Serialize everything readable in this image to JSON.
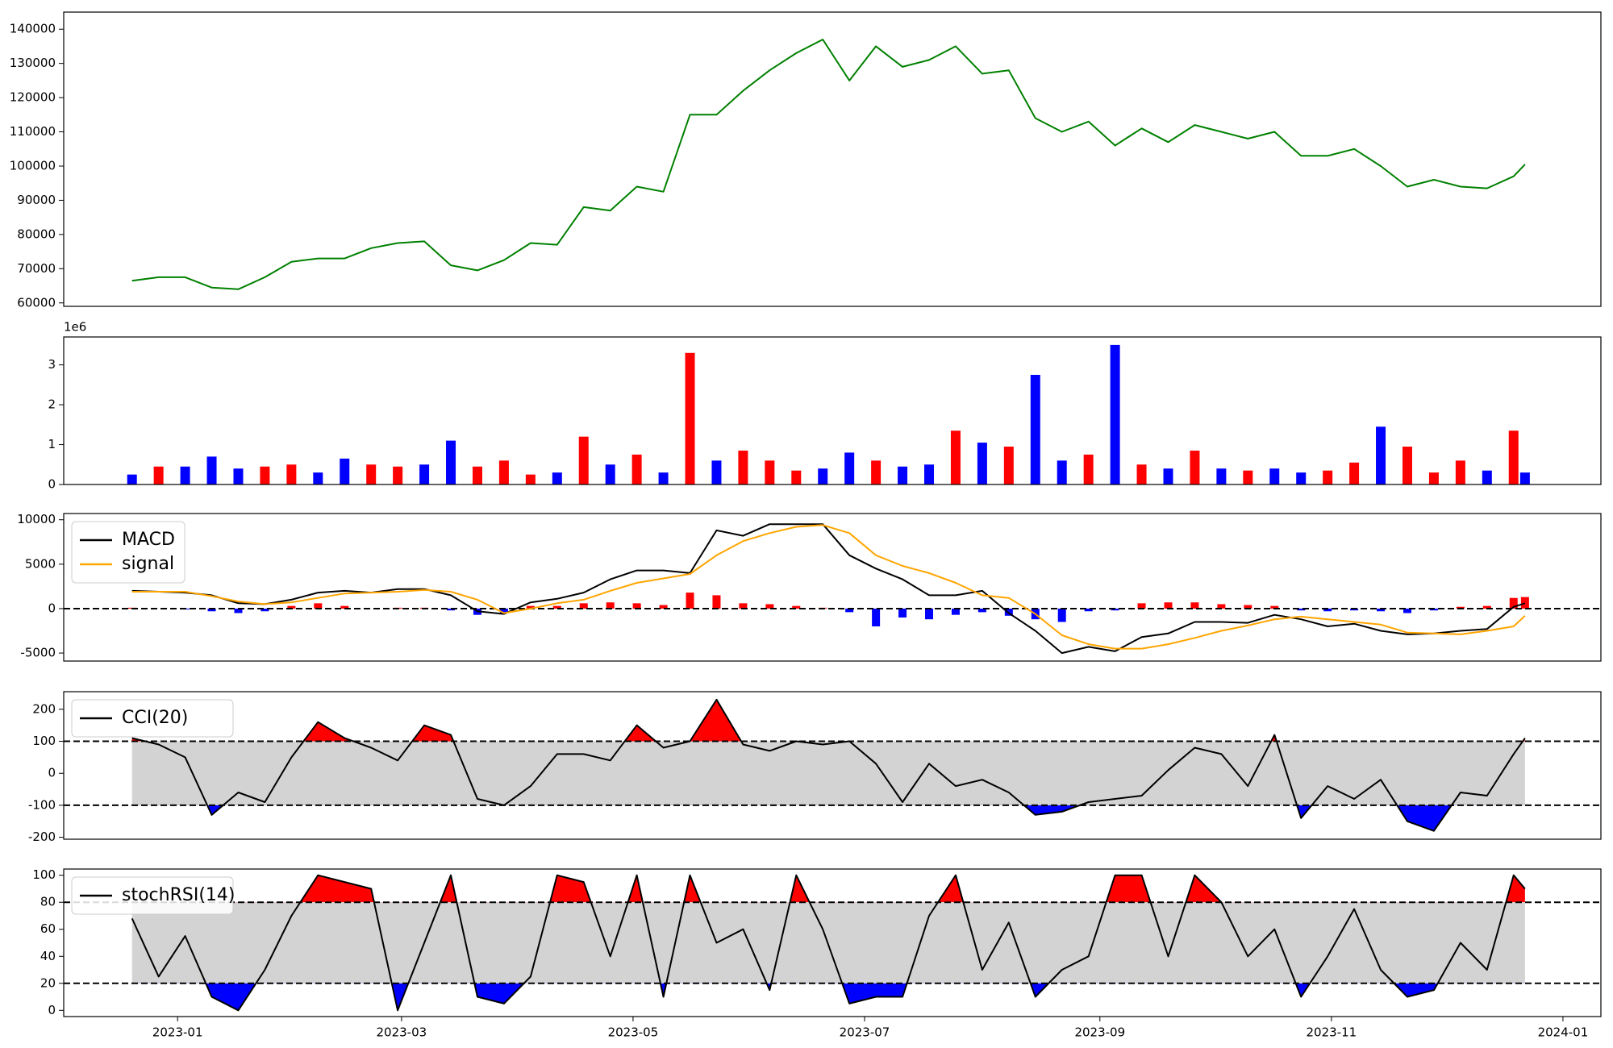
{
  "chart_data": [
    {
      "type": "line",
      "x": [
        "2022-12-20",
        "2022-12-27",
        "2023-01-03",
        "2023-01-10",
        "2023-01-17",
        "2023-01-24",
        "2023-01-31",
        "2023-02-07",
        "2023-02-14",
        "2023-02-21",
        "2023-02-28",
        "2023-03-07",
        "2023-03-14",
        "2023-03-21",
        "2023-03-28",
        "2023-04-04",
        "2023-04-11",
        "2023-04-18",
        "2023-04-25",
        "2023-05-02",
        "2023-05-09",
        "2023-05-16",
        "2023-05-23",
        "2023-05-30",
        "2023-06-06",
        "2023-06-13",
        "2023-06-20",
        "2023-06-27",
        "2023-07-04",
        "2023-07-11",
        "2023-07-18",
        "2023-07-25",
        "2023-08-01",
        "2023-08-08",
        "2023-08-15",
        "2023-08-22",
        "2023-08-29",
        "2023-09-05",
        "2023-09-12",
        "2023-09-19",
        "2023-09-26",
        "2023-10-03",
        "2023-10-10",
        "2023-10-17",
        "2023-10-24",
        "2023-10-31",
        "2023-11-07",
        "2023-11-14",
        "2023-11-21",
        "2023-11-28",
        "2023-12-05",
        "2023-12-12",
        "2023-12-19",
        "2023-12-22"
      ],
      "values": [
        66500,
        67500,
        67500,
        64500,
        64000,
        67500,
        72000,
        73000,
        73000,
        76000,
        77500,
        78000,
        71000,
        69500,
        72500,
        77500,
        77000,
        88000,
        87000,
        94000,
        92500,
        115000,
        115000,
        122000,
        128000,
        133000,
        137000,
        125000,
        135000,
        129000,
        131000,
        135000,
        127000,
        128000,
        114000,
        110000,
        113000,
        106000,
        111000,
        107000,
        112000,
        110000,
        108000,
        110000,
        103000,
        103000,
        105000,
        100000,
        94000,
        96000,
        94000,
        93500,
        97000,
        100500
      ],
      "color": "#008000",
      "xlim": [
        "2022-12-02",
        "2024-01-11"
      ],
      "ylim": [
        59000,
        145000
      ],
      "yticks": [
        60000,
        70000,
        80000,
        90000,
        100000,
        110000,
        120000,
        130000,
        140000
      ]
    },
    {
      "type": "bar",
      "x": [
        "2022-12-20",
        "2022-12-27",
        "2023-01-03",
        "2023-01-10",
        "2023-01-17",
        "2023-01-24",
        "2023-01-31",
        "2023-02-07",
        "2023-02-14",
        "2023-02-21",
        "2023-02-28",
        "2023-03-07",
        "2023-03-14",
        "2023-03-21",
        "2023-03-28",
        "2023-04-04",
        "2023-04-11",
        "2023-04-18",
        "2023-04-25",
        "2023-05-02",
        "2023-05-09",
        "2023-05-16",
        "2023-05-23",
        "2023-05-30",
        "2023-06-06",
        "2023-06-13",
        "2023-06-20",
        "2023-06-27",
        "2023-07-04",
        "2023-07-11",
        "2023-07-18",
        "2023-07-25",
        "2023-08-01",
        "2023-08-08",
        "2023-08-15",
        "2023-08-22",
        "2023-08-29",
        "2023-09-05",
        "2023-09-12",
        "2023-09-19",
        "2023-09-26",
        "2023-10-03",
        "2023-10-10",
        "2023-10-17",
        "2023-10-24",
        "2023-10-31",
        "2023-11-07",
        "2023-11-14",
        "2023-11-21",
        "2023-11-28",
        "2023-12-05",
        "2023-12-12",
        "2023-12-19",
        "2023-12-22"
      ],
      "values": [
        250000,
        450000,
        450000,
        700000,
        400000,
        450000,
        500000,
        300000,
        650000,
        500000,
        450000,
        500000,
        1100000,
        450000,
        600000,
        250000,
        300000,
        1200000,
        500000,
        750000,
        300000,
        3300000,
        600000,
        850000,
        600000,
        350000,
        400000,
        800000,
        600000,
        450000,
        500000,
        1350000,
        1050000,
        950000,
        2750000,
        600000,
        750000,
        3500000,
        500000,
        400000,
        850000,
        400000,
        350000,
        400000,
        300000,
        350000,
        550000,
        1450000,
        950000,
        300000,
        600000,
        350000,
        1350000,
        300000
      ],
      "colors": [
        "blue",
        "red",
        "blue",
        "blue",
        "blue",
        "red",
        "red",
        "blue",
        "blue",
        "red",
        "red",
        "blue",
        "blue",
        "red",
        "red",
        "red",
        "blue",
        "red",
        "blue",
        "red",
        "blue",
        "red",
        "blue",
        "red",
        "red",
        "red",
        "blue",
        "blue",
        "red",
        "blue",
        "blue",
        "red",
        "blue",
        "red",
        "blue",
        "blue",
        "red",
        "blue",
        "red",
        "blue",
        "red",
        "blue",
        "red",
        "blue",
        "blue",
        "red",
        "red",
        "blue",
        "red",
        "red",
        "red",
        "blue",
        "red",
        "blue"
      ],
      "offset_label": "1e6",
      "xlim": [
        "2022-12-02",
        "2024-01-11"
      ],
      "ylim": [
        0,
        3700000
      ],
      "yticks": [
        0,
        {
          "value": 1000000,
          "label": "1"
        },
        {
          "value": 2000000,
          "label": "2"
        },
        {
          "value": 3000000,
          "label": "3"
        }
      ]
    },
    {
      "type": "line",
      "x": [
        "2022-12-20",
        "2022-12-27",
        "2023-01-03",
        "2023-01-10",
        "2023-01-17",
        "2023-01-24",
        "2023-01-31",
        "2023-02-07",
        "2023-02-14",
        "2023-02-21",
        "2023-02-28",
        "2023-03-07",
        "2023-03-14",
        "2023-03-21",
        "2023-03-28",
        "2023-04-04",
        "2023-04-11",
        "2023-04-18",
        "2023-04-25",
        "2023-05-02",
        "2023-05-09",
        "2023-05-16",
        "2023-05-23",
        "2023-05-30",
        "2023-06-06",
        "2023-06-13",
        "2023-06-20",
        "2023-06-27",
        "2023-07-04",
        "2023-07-11",
        "2023-07-18",
        "2023-07-25",
        "2023-08-01",
        "2023-08-08",
        "2023-08-15",
        "2023-08-22",
        "2023-08-29",
        "2023-09-05",
        "2023-09-12",
        "2023-09-19",
        "2023-09-26",
        "2023-10-03",
        "2023-10-10",
        "2023-10-17",
        "2023-10-24",
        "2023-10-31",
        "2023-11-07",
        "2023-11-14",
        "2023-11-21",
        "2023-11-28",
        "2023-12-05",
        "2023-12-12",
        "2023-12-19",
        "2023-12-22"
      ],
      "series": [
        {
          "name": "MACD",
          "color": "black",
          "values": [
            2000,
            1900,
            1800,
            1500,
            600,
            500,
            1000,
            1800,
            2000,
            1800,
            2200,
            2200,
            1500,
            -300,
            -600,
            700,
            1100,
            1800,
            3300,
            4300,
            4300,
            4000,
            8800,
            8200,
            9500,
            9500,
            9500,
            6000,
            4500,
            3300,
            1500,
            1500,
            2000,
            -500,
            -2500,
            -5000,
            -4300,
            -4800,
            -3200,
            -2800,
            -1500,
            -1500,
            -1600,
            -700,
            -1200,
            -2000,
            -1700,
            -2500,
            -2900,
            -2800,
            -2500,
            -2300,
            200,
            600
          ]
        },
        {
          "name": "signal",
          "color": "orange",
          "values": [
            1900,
            1900,
            1900,
            1400,
            800,
            500,
            700,
            1200,
            1700,
            1800,
            1900,
            2100,
            1900,
            1000,
            -500,
            0,
            600,
            1000,
            2000,
            2900,
            3400,
            3900,
            6000,
            7600,
            8500,
            9200,
            9400,
            8500,
            6000,
            4800,
            4000,
            2900,
            1500,
            1200,
            -600,
            -3000,
            -4000,
            -4500,
            -4500,
            -4000,
            -3300,
            -2500,
            -1900,
            -1200,
            -900,
            -1200,
            -1500,
            -1800,
            -2700,
            -2800,
            -2900,
            -2500,
            -2000,
            -800
          ]
        }
      ],
      "histogram": {
        "values": [
          100,
          0,
          -100,
          -300,
          -500,
          -300,
          300,
          600,
          300,
          0,
          100,
          100,
          -200,
          -700,
          -500,
          300,
          300,
          600,
          700,
          600,
          400,
          1800,
          1500,
          600,
          500,
          300,
          100,
          -400,
          -2000,
          -1000,
          -1200,
          -700,
          -400,
          -800,
          -1200,
          -1500,
          -300,
          -200,
          600,
          700,
          700,
          500,
          400,
          300,
          -200,
          -300,
          -200,
          -300,
          -500,
          -200,
          200,
          300,
          1200,
          1300
        ],
        "positive_color": "red",
        "negative_color": "blue"
      },
      "zero_line": true,
      "legend": "upper left",
      "xlim": [
        "2022-12-02",
        "2024-01-11"
      ],
      "ylim": [
        -5900,
        10700
      ],
      "yticks": [
        -5000,
        0,
        5000,
        10000
      ]
    },
    {
      "type": "line",
      "x": [
        "2022-12-20",
        "2022-12-27",
        "2023-01-03",
        "2023-01-10",
        "2023-01-17",
        "2023-01-24",
        "2023-01-31",
        "2023-02-07",
        "2023-02-14",
        "2023-02-21",
        "2023-02-28",
        "2023-03-07",
        "2023-03-14",
        "2023-03-21",
        "2023-03-28",
        "2023-04-04",
        "2023-04-11",
        "2023-04-18",
        "2023-04-25",
        "2023-05-02",
        "2023-05-09",
        "2023-05-16",
        "2023-05-23",
        "2023-05-30",
        "2023-06-06",
        "2023-06-13",
        "2023-06-20",
        "2023-06-27",
        "2023-07-04",
        "2023-07-11",
        "2023-07-18",
        "2023-07-25",
        "2023-08-01",
        "2023-08-08",
        "2023-08-15",
        "2023-08-22",
        "2023-08-29",
        "2023-09-05",
        "2023-09-12",
        "2023-09-19",
        "2023-09-26",
        "2023-10-03",
        "2023-10-10",
        "2023-10-17",
        "2023-10-24",
        "2023-10-31",
        "2023-11-07",
        "2023-11-14",
        "2023-11-21",
        "2023-11-28",
        "2023-12-05",
        "2023-12-12",
        "2023-12-19",
        "2023-12-22"
      ],
      "series": [
        {
          "name": "CCI(20)",
          "color": "black",
          "values": [
            110,
            90,
            50,
            -130,
            -60,
            -90,
            50,
            160,
            110,
            80,
            40,
            150,
            120,
            -80,
            -100,
            -40,
            60,
            60,
            40,
            150,
            80,
            100,
            230,
            90,
            70,
            100,
            90,
            100,
            30,
            -90,
            30,
            -40,
            -20,
            -60,
            -130,
            -120,
            -90,
            -80,
            -70,
            10,
            80,
            60,
            -40,
            120,
            -140,
            -40,
            -80,
            -20,
            -150,
            -180,
            -60,
            -70,
            60,
            110
          ]
        }
      ],
      "bands": [
        -100,
        100
      ],
      "band_fill": "lightgray",
      "above_color": "red",
      "below_color": "blue",
      "legend": "upper left",
      "xlim": [
        "2022-12-02",
        "2024-01-11"
      ],
      "ylim": [
        -206,
        255
      ],
      "yticks": [
        -200,
        -100,
        0,
        100,
        200
      ]
    },
    {
      "type": "line",
      "x": [
        "2022-12-20",
        "2022-12-27",
        "2023-01-03",
        "2023-01-10",
        "2023-01-17",
        "2023-01-24",
        "2023-01-31",
        "2023-02-07",
        "2023-02-14",
        "2023-02-21",
        "2023-02-28",
        "2023-03-07",
        "2023-03-14",
        "2023-03-21",
        "2023-03-28",
        "2023-04-04",
        "2023-04-11",
        "2023-04-18",
        "2023-04-25",
        "2023-05-02",
        "2023-05-09",
        "2023-05-16",
        "2023-05-23",
        "2023-05-30",
        "2023-06-06",
        "2023-06-13",
        "2023-06-20",
        "2023-06-27",
        "2023-07-04",
        "2023-07-11",
        "2023-07-18",
        "2023-07-25",
        "2023-08-01",
        "2023-08-08",
        "2023-08-15",
        "2023-08-22",
        "2023-08-29",
        "2023-09-05",
        "2023-09-12",
        "2023-09-19",
        "2023-09-26",
        "2023-10-03",
        "2023-10-10",
        "2023-10-17",
        "2023-10-24",
        "2023-10-31",
        "2023-11-07",
        "2023-11-14",
        "2023-11-21",
        "2023-11-28",
        "2023-12-05",
        "2023-12-12",
        "2023-12-19",
        "2023-12-22"
      ],
      "series": [
        {
          "name": "stochRSI(14)",
          "color": "black",
          "values": [
            68,
            25,
            55,
            10,
            0,
            30,
            70,
            100,
            95,
            90,
            0,
            50,
            100,
            10,
            5,
            25,
            100,
            95,
            40,
            100,
            10,
            100,
            50,
            60,
            15,
            100,
            60,
            5,
            10,
            10,
            70,
            100,
            30,
            65,
            10,
            30,
            40,
            100,
            100,
            40,
            100,
            80,
            40,
            60,
            10,
            40,
            75,
            30,
            10,
            15,
            50,
            30,
            100,
            90
          ]
        }
      ],
      "bands": [
        20,
        80
      ],
      "band_fill": "lightgray",
      "above_color": "red",
      "below_color": "blue",
      "legend": "upper left",
      "xlim": [
        "2022-12-02",
        "2024-01-11"
      ],
      "ylim": [
        -4.6,
        104.6
      ],
      "yticks": [
        0,
        20,
        40,
        60,
        80,
        100
      ],
      "xticks": [
        {
          "value": "2023-01-01",
          "label": "2023-01"
        },
        {
          "value": "2023-03-01",
          "label": "2023-03"
        },
        {
          "value": "2023-05-01",
          "label": "2023-05"
        },
        {
          "value": "2023-07-01",
          "label": "2023-07"
        },
        {
          "value": "2023-09-01",
          "label": "2023-09"
        },
        {
          "value": "2023-11-01",
          "label": "2023-11"
        },
        {
          "value": "2024-01-01",
          "label": "2024-01"
        }
      ]
    }
  ]
}
